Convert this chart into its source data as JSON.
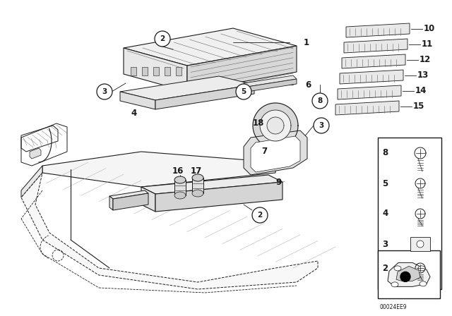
{
  "bg_color": "#ffffff",
  "fig_width": 6.4,
  "fig_height": 4.48,
  "watermark": "00024EE9",
  "dark": "#1a1a1a",
  "gray": "#666666",
  "light_gray": "#aaaaaa"
}
